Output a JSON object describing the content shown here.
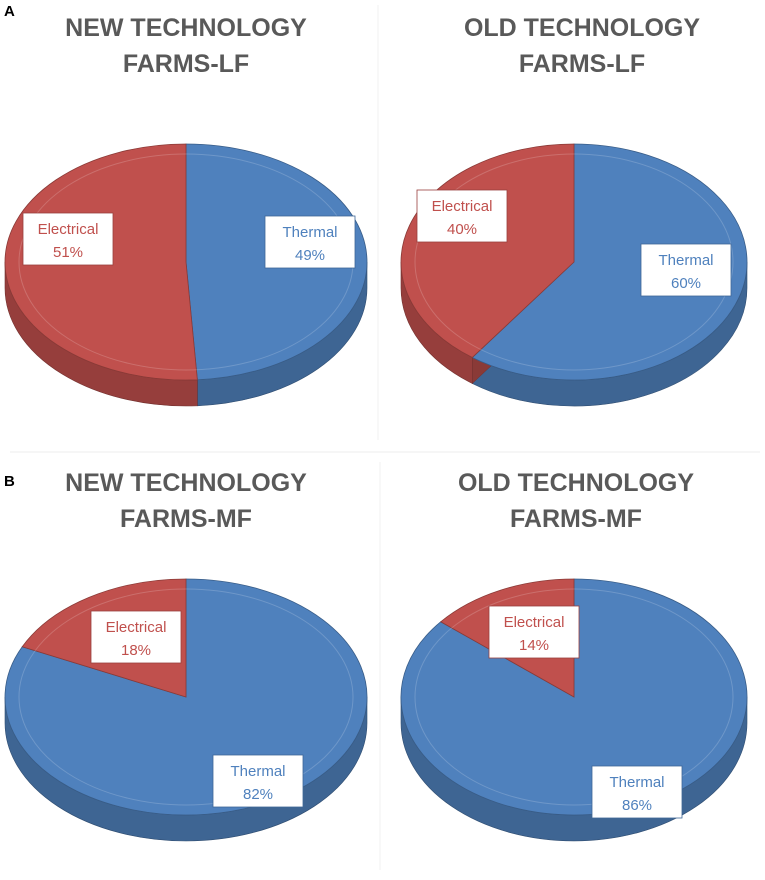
{
  "panels": [
    {
      "letter": "A"
    },
    {
      "letter": "B"
    }
  ],
  "chart_data": [
    {
      "type": "pie",
      "panel": "A",
      "title": "NEW TECHNOLOGY\nFARMS-LF",
      "categories": [
        "Thermal",
        "Electrical"
      ],
      "values": [
        49,
        51
      ],
      "labels": [
        "49%",
        "51%"
      ],
      "colors": [
        "#4f81bd",
        "#c0504d"
      ],
      "style": "3d"
    },
    {
      "type": "pie",
      "panel": "A",
      "title": "OLD TECHNOLOGY\nFARMS-LF",
      "categories": [
        "Thermal",
        "Electrical"
      ],
      "values": [
        60,
        40
      ],
      "labels": [
        "60%",
        "40%"
      ],
      "colors": [
        "#4f81bd",
        "#c0504d"
      ],
      "style": "3d"
    },
    {
      "type": "pie",
      "panel": "B",
      "title": "NEW TECHNOLOGY\nFARMS-MF",
      "categories": [
        "Thermal",
        "Electrical"
      ],
      "values": [
        82,
        18
      ],
      "labels": [
        "82%",
        "18%"
      ],
      "colors": [
        "#4f81bd",
        "#c0504d"
      ],
      "style": "3d"
    },
    {
      "type": "pie",
      "panel": "B",
      "title": "OLD TECHNOLOGY\nFARMS-MF",
      "categories": [
        "Thermal",
        "Electrical"
      ],
      "values": [
        86,
        14
      ],
      "labels": [
        "86%",
        "14%"
      ],
      "colors": [
        "#4f81bd",
        "#c0504d"
      ],
      "style": "3d"
    }
  ]
}
